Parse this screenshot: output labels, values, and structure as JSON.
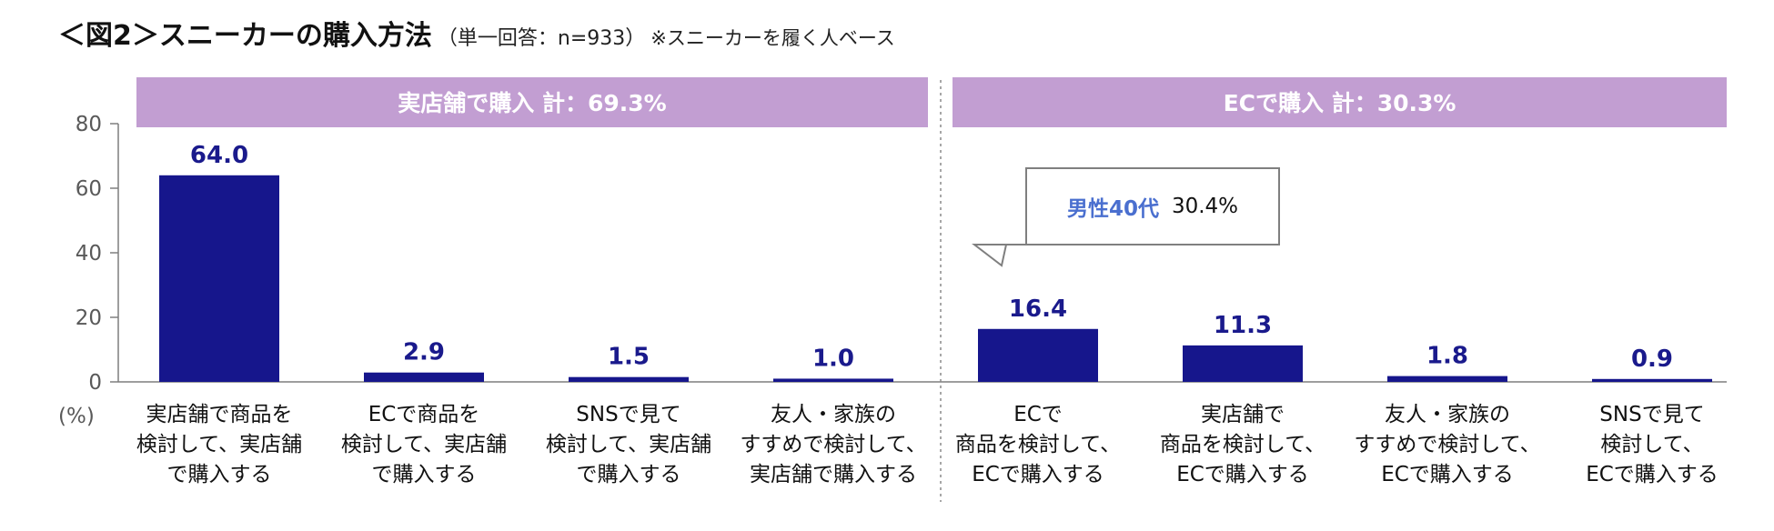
{
  "title": {
    "main": "＜図2＞スニーカーの購入方法",
    "sub": "（単一回答：n=933）",
    "note": "※スニーカーを履く人ベース"
  },
  "colors": {
    "bar": "#16168c",
    "band": "#c29ed2",
    "value_label": "#1a1a8c",
    "callout_key": "#4a6fcf"
  },
  "chart_data": {
    "type": "bar",
    "ylim": [
      0,
      80
    ],
    "yticks": [
      "0",
      "20",
      "40",
      "60",
      "80"
    ],
    "yunit": "(%)",
    "grid": false,
    "groups": [
      {
        "label": "実店舗で購入 計：69.3%",
        "count": 4
      },
      {
        "label": "ECで購入 計：30.3%",
        "count": 4
      }
    ],
    "categories": [
      [
        "実店舗で商品を",
        "検討して、実店舗",
        "で購入する"
      ],
      [
        "ECで商品を",
        "検討して、実店舗",
        "で購入する"
      ],
      [
        "SNSで見て",
        "検討して、実店舗",
        "で購入する"
      ],
      [
        "友人・家族の",
        "すすめで検討して、",
        "実店舗で購入する"
      ],
      [
        "ECで",
        "商品を検討して、",
        "ECで購入する"
      ],
      [
        "実店舗で",
        "商品を検討して、",
        "ECで購入する"
      ],
      [
        "友人・家族の",
        "すすめで検討して、",
        "ECで購入する"
      ],
      [
        "SNSで見て",
        "検討して、",
        "ECで購入する"
      ]
    ],
    "values": [
      64.0,
      2.9,
      1.5,
      1.0,
      16.4,
      11.3,
      1.8,
      0.9
    ],
    "value_labels": [
      "64.0",
      "2.9",
      "1.5",
      "1.0",
      "16.4",
      "11.3",
      "1.8",
      "0.9"
    ],
    "annotation": {
      "category_index": 4,
      "key": "男性40代",
      "value": "30.4%"
    }
  }
}
